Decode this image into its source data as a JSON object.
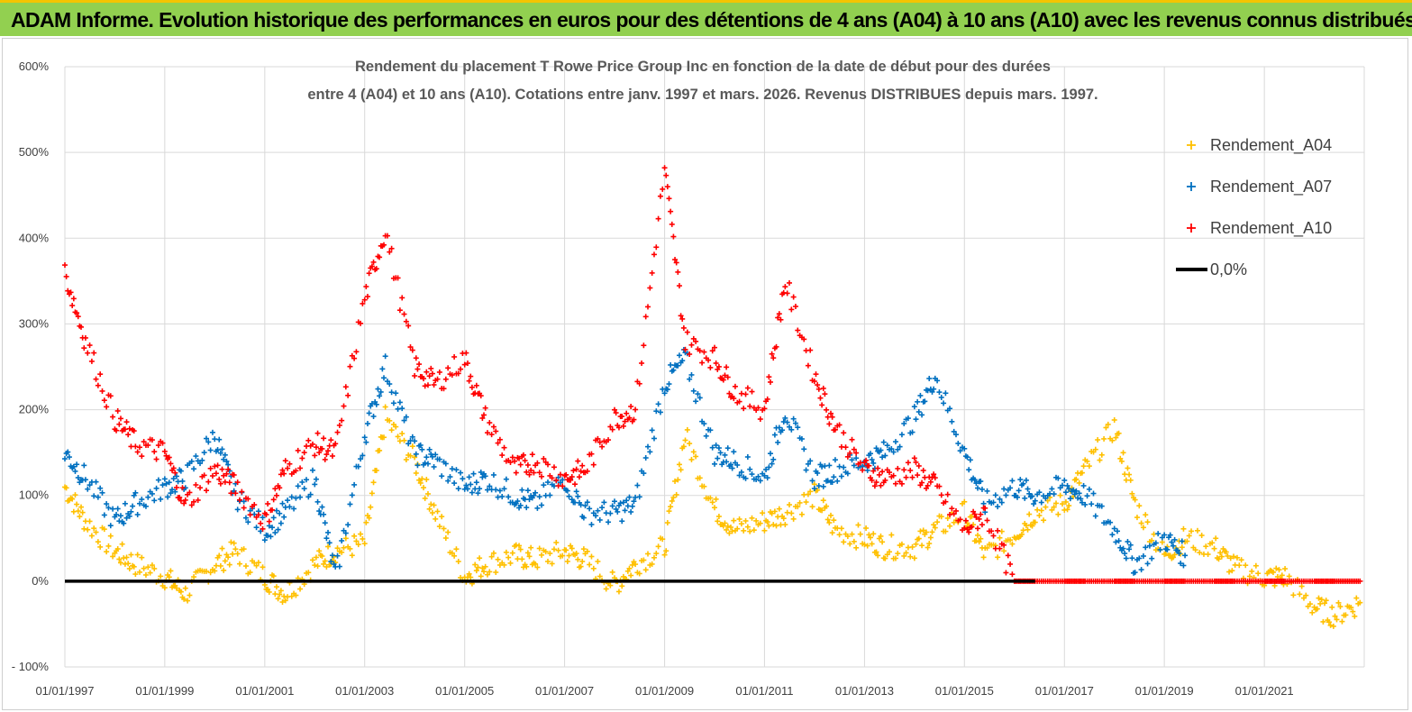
{
  "header": {
    "title": "ADAM Informe. Evolution historique des performances en euros pour des détentions de 4 ans (A04) à 10 ans (A10) avec les revenus connus distribués"
  },
  "colors": {
    "banner": "#92d050",
    "a04": "#ffc000",
    "a07": "#0070c0",
    "a10": "#ff0000",
    "zero": "#000000"
  },
  "chart_data": {
    "type": "scatter",
    "title_lines": [
      "Rendement du placement T Rowe Price Group Inc en fonction de la date de début pour des durées",
      "entre 4 (A04) et 10 ans (A10). Cotations entre janv. 1997 et mars. 2026. Revenus DISTRIBUES depuis mars. 1997."
    ],
    "x_range": [
      "1997-01-01",
      "2023-01-01"
    ],
    "ylim": [
      -100,
      600
    ],
    "y_unit": "%",
    "y_ticks": [
      "600%",
      "500%",
      "400%",
      "300%",
      "200%",
      "100%",
      "0%",
      "- 100%"
    ],
    "x_ticks": [
      "01/01/1997",
      "01/01/1999",
      "01/01/2001",
      "01/01/2003",
      "01/01/2005",
      "01/01/2007",
      "01/01/2009",
      "01/01/2011",
      "01/01/2013",
      "01/01/2015",
      "01/01/2017",
      "01/01/2019",
      "01/01/2021"
    ],
    "grid": true,
    "legend_position": "top-right",
    "series": [
      {
        "name": "Rendement_A04",
        "color": "#ffc000",
        "x": [
          "1997-01",
          "1997-06",
          "1998-01",
          "1998-06",
          "1999-01",
          "1999-06",
          "2000-01",
          "2000-06",
          "2001-01",
          "2001-06",
          "2002-01",
          "2002-06",
          "2003-01",
          "2003-06",
          "2004-01",
          "2004-06",
          "2005-01",
          "2005-06",
          "2006-01",
          "2006-06",
          "2007-01",
          "2007-06",
          "2008-01",
          "2008-06",
          "2009-01",
          "2009-06",
          "2010-01",
          "2010-06",
          "2011-01",
          "2011-06",
          "2012-01",
          "2012-06",
          "2013-01",
          "2013-06",
          "2014-01",
          "2014-06",
          "2015-01",
          "2015-06",
          "2016-01",
          "2016-06",
          "2017-01",
          "2017-06",
          "2018-01",
          "2018-06",
          "2019-01",
          "2019-06",
          "2020-01",
          "2020-06",
          "2021-01",
          "2021-06",
          "2022-01",
          "2022-06",
          "2022-12"
        ],
        "y": [
          110,
          70,
          35,
          20,
          5,
          -15,
          20,
          35,
          5,
          -15,
          20,
          35,
          45,
          190,
          140,
          80,
          5,
          20,
          30,
          25,
          35,
          25,
          -5,
          20,
          40,
          170,
          85,
          60,
          70,
          80,
          100,
          60,
          50,
          40,
          40,
          60,
          80,
          30,
          55,
          80,
          90,
          130,
          180,
          90,
          30,
          50,
          40,
          15,
          5,
          5,
          -30,
          -40,
          -25
        ]
      },
      {
        "name": "Rendement_A07",
        "color": "#0070c0",
        "x": [
          "1997-01",
          "1997-06",
          "1998-01",
          "1998-06",
          "1999-01",
          "1999-06",
          "2000-01",
          "2000-06",
          "2001-01",
          "2001-06",
          "2002-01",
          "2002-06",
          "2003-01",
          "2003-06",
          "2004-01",
          "2004-06",
          "2005-01",
          "2005-06",
          "2006-01",
          "2006-06",
          "2007-01",
          "2007-06",
          "2008-01",
          "2008-06",
          "2009-01",
          "2009-06",
          "2010-01",
          "2010-06",
          "2011-01",
          "2011-06",
          "2012-01",
          "2012-06",
          "2013-01",
          "2013-06",
          "2014-01",
          "2014-06",
          "2015-01",
          "2015-06",
          "2016-01",
          "2016-06",
          "2017-01",
          "2017-06",
          "2018-01",
          "2018-06",
          "2019-01",
          "2019-06"
        ],
        "y": [
          150,
          120,
          70,
          90,
          110,
          120,
          170,
          100,
          60,
          80,
          120,
          5,
          170,
          250,
          150,
          140,
          110,
          120,
          100,
          90,
          120,
          80,
          80,
          90,
          230,
          260,
          150,
          140,
          120,
          200,
          120,
          130,
          140,
          150,
          190,
          240,
          150,
          90,
          110,
          100,
          110,
          100,
          60,
          20,
          50,
          30
        ]
      },
      {
        "name": "Rendement_A10",
        "color": "#ff0000",
        "x": [
          "1997-01",
          "1997-06",
          "1998-01",
          "1998-06",
          "1999-01",
          "1999-06",
          "2000-01",
          "2000-06",
          "2001-01",
          "2001-06",
          "2002-01",
          "2002-06",
          "2003-01",
          "2003-06",
          "2004-01",
          "2004-06",
          "2005-01",
          "2005-06",
          "2006-01",
          "2006-06",
          "2007-01",
          "2007-06",
          "2008-01",
          "2008-06",
          "2009-01",
          "2009-06",
          "2010-01",
          "2010-06",
          "2011-01",
          "2011-06",
          "2012-01",
          "2012-06",
          "2013-01",
          "2013-06",
          "2014-01",
          "2014-06",
          "2015-01",
          "2015-06",
          "2016-01",
          "2016-06",
          "2017-01",
          "2017-06",
          "2018-01",
          "2018-06",
          "2019-01",
          "2019-06",
          "2020-01",
          "2020-06",
          "2021-01",
          "2021-06",
          "2022-01",
          "2022-06",
          "2022-12"
        ],
        "y": [
          360,
          280,
          190,
          160,
          150,
          90,
          130,
          110,
          70,
          130,
          160,
          150,
          330,
          410,
          250,
          230,
          260,
          190,
          130,
          140,
          120,
          130,
          190,
          200,
          480,
          280,
          260,
          220,
          200,
          350,
          240,
          180,
          130,
          120,
          130,
          110,
          60,
          80,
          0,
          0,
          0,
          0,
          0,
          0,
          0,
          0,
          0,
          0,
          0,
          0,
          0,
          0,
          0
        ]
      },
      {
        "name": "0,0%",
        "color": "#000000",
        "x": [
          "1997-01-01",
          "2016-06-01"
        ],
        "y": [
          0,
          0
        ]
      }
    ]
  }
}
